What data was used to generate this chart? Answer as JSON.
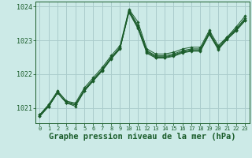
{
  "background_color": "#cceae7",
  "grid_color": "#aacccc",
  "line_color": "#1a5c2a",
  "marker_color": "#1a5c2a",
  "xlabel": "Graphe pression niveau de la mer (hPa)",
  "xlabel_fontsize": 7.5,
  "ylim": [
    1020.55,
    1024.15
  ],
  "xlim": [
    -0.5,
    23.5
  ],
  "yticks": [
    1021,
    1022,
    1023,
    1024
  ],
  "xticks": [
    0,
    1,
    2,
    3,
    4,
    5,
    6,
    7,
    8,
    9,
    10,
    11,
    12,
    13,
    14,
    15,
    16,
    17,
    18,
    19,
    20,
    21,
    22,
    23
  ],
  "series": [
    [
      1020.8,
      1021.1,
      1021.5,
      1021.2,
      1021.15,
      1021.6,
      1021.9,
      1022.2,
      1022.55,
      1022.85,
      1023.92,
      1023.55,
      1022.75,
      1022.6,
      1022.6,
      1022.65,
      1022.75,
      1022.8,
      1022.8,
      1023.3,
      1022.85,
      1023.1,
      1023.4,
      1023.72
    ],
    [
      1020.8,
      1021.1,
      1021.5,
      1021.2,
      1021.1,
      1021.55,
      1021.85,
      1022.15,
      1022.5,
      1022.8,
      1023.9,
      1023.45,
      1022.7,
      1022.55,
      1022.55,
      1022.6,
      1022.7,
      1022.75,
      1022.75,
      1023.25,
      1022.8,
      1023.1,
      1023.35,
      1023.65
    ],
    [
      1020.8,
      1021.05,
      1021.45,
      1021.15,
      1021.05,
      1021.5,
      1021.8,
      1022.1,
      1022.45,
      1022.75,
      1023.88,
      1023.4,
      1022.68,
      1022.52,
      1022.52,
      1022.57,
      1022.67,
      1022.72,
      1022.72,
      1023.22,
      1022.77,
      1023.07,
      1023.32,
      1023.62
    ],
    [
      1020.75,
      1021.05,
      1021.45,
      1021.15,
      1021.1,
      1021.52,
      1021.82,
      1022.12,
      1022.47,
      1022.77,
      1023.85,
      1023.38,
      1022.65,
      1022.5,
      1022.5,
      1022.55,
      1022.65,
      1022.7,
      1022.7,
      1023.2,
      1022.75,
      1023.05,
      1023.3,
      1023.6
    ],
    [
      1020.75,
      1021.05,
      1021.45,
      1021.15,
      1021.1,
      1021.52,
      1021.82,
      1022.12,
      1022.47,
      1022.77,
      1023.83,
      1023.35,
      1022.62,
      1022.48,
      1022.48,
      1022.53,
      1022.63,
      1022.68,
      1022.68,
      1023.18,
      1022.73,
      1023.03,
      1023.28,
      1023.58
    ]
  ]
}
